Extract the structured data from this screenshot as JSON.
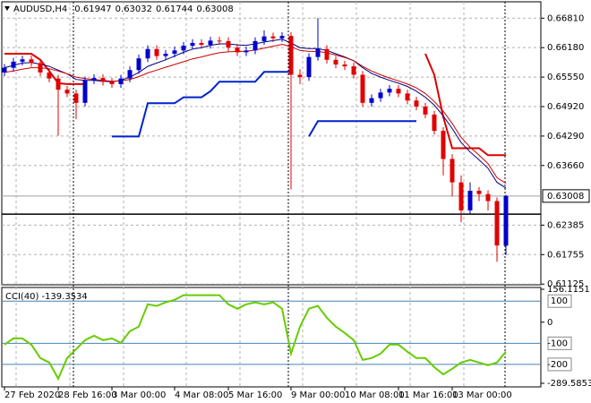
{
  "chart_data": [
    {
      "type": "candlestick",
      "title": "AUDUSD,H4",
      "open": [
        0.6565,
        0.6575,
        0.6588,
        0.6593,
        0.6585,
        0.6565,
        0.6552,
        0.6528,
        0.652,
        0.65,
        0.6548,
        0.6553,
        0.6545,
        0.654,
        0.6552,
        0.657,
        0.6595,
        0.6615,
        0.66,
        0.6605,
        0.6612,
        0.6622,
        0.6628,
        0.6624,
        0.6633,
        0.6632,
        0.6618,
        0.6608,
        0.6612,
        0.6632,
        0.6642,
        0.6638,
        0.6643,
        0.656,
        0.6555,
        0.6598,
        0.6615,
        0.6592,
        0.6582,
        0.6578,
        0.656,
        0.65,
        0.651,
        0.6522,
        0.653,
        0.652,
        0.6505,
        0.6492,
        0.6475,
        0.644,
        0.638,
        0.633,
        0.627,
        0.6312,
        0.6305,
        0.629,
        0.61947
      ],
      "high": [
        0.6583,
        0.6596,
        0.6601,
        0.6601,
        0.6593,
        0.6573,
        0.656,
        0.6536,
        0.6528,
        0.6556,
        0.6561,
        0.6561,
        0.6553,
        0.656,
        0.6578,
        0.6603,
        0.6623,
        0.6623,
        0.6613,
        0.662,
        0.663,
        0.6636,
        0.6636,
        0.6641,
        0.6641,
        0.664,
        0.6626,
        0.662,
        0.664,
        0.6655,
        0.665,
        0.6651,
        0.6651,
        0.6572,
        0.6606,
        0.6681,
        0.6623,
        0.66,
        0.659,
        0.6586,
        0.6568,
        0.6518,
        0.653,
        0.6538,
        0.6538,
        0.6528,
        0.6513,
        0.65,
        0.6483,
        0.6448,
        0.639,
        0.6345,
        0.633,
        0.632,
        0.6313,
        0.6298,
        0.63032
      ],
      "low": [
        0.6557,
        0.6567,
        0.658,
        0.6577,
        0.6557,
        0.6544,
        0.643,
        0.6512,
        0.6465,
        0.6492,
        0.654,
        0.6537,
        0.6532,
        0.6532,
        0.6544,
        0.6562,
        0.6587,
        0.6592,
        0.6592,
        0.6597,
        0.6604,
        0.6614,
        0.6616,
        0.6616,
        0.6624,
        0.661,
        0.66,
        0.66,
        0.6604,
        0.6624,
        0.663,
        0.663,
        0.6315,
        0.654,
        0.6547,
        0.659,
        0.6584,
        0.6574,
        0.657,
        0.6552,
        0.6492,
        0.6492,
        0.6502,
        0.6514,
        0.6512,
        0.6497,
        0.6484,
        0.6467,
        0.6432,
        0.6345,
        0.63,
        0.6245,
        0.6262,
        0.629,
        0.627,
        0.616,
        0.61744
      ],
      "close": [
        0.6575,
        0.6588,
        0.6593,
        0.6585,
        0.6565,
        0.6552,
        0.6528,
        0.652,
        0.65,
        0.6548,
        0.6553,
        0.6545,
        0.654,
        0.6552,
        0.657,
        0.6595,
        0.6615,
        0.66,
        0.6605,
        0.6612,
        0.6622,
        0.6628,
        0.6624,
        0.6633,
        0.6632,
        0.6618,
        0.6608,
        0.6612,
        0.6632,
        0.6642,
        0.6638,
        0.6643,
        0.656,
        0.6555,
        0.6598,
        0.6615,
        0.6592,
        0.6582,
        0.6578,
        0.656,
        0.65,
        0.651,
        0.6522,
        0.653,
        0.652,
        0.6505,
        0.6492,
        0.6475,
        0.644,
        0.638,
        0.633,
        0.627,
        0.6312,
        0.6305,
        0.629,
        0.6195,
        0.63008
      ],
      "up_color": "#0000cd",
      "down_color": "#e00000",
      "lines": [
        {
          "color": "#000080",
          "values": [
            0.6575,
            0.658,
            0.6585,
            0.6586,
            0.6583,
            0.6578,
            0.657,
            0.6562,
            0.655,
            0.6548,
            0.6548,
            0.6546,
            0.6545,
            0.6548,
            0.6555,
            0.6565,
            0.6578,
            0.6585,
            0.6592,
            0.66,
            0.6608,
            0.6615,
            0.6618,
            0.6623,
            0.6626,
            0.6626,
            0.6624,
            0.6623,
            0.6626,
            0.663,
            0.6633,
            0.6636,
            0.6628,
            0.6618,
            0.6616,
            0.6616,
            0.6612,
            0.6605,
            0.6598,
            0.659,
            0.6575,
            0.6563,
            0.6555,
            0.6548,
            0.6542,
            0.6535,
            0.6525,
            0.6512,
            0.6495,
            0.6472,
            0.6445,
            0.6415,
            0.6395,
            0.6378,
            0.636,
            0.633,
            0.6318
          ]
        },
        {
          "color": "#cc0000",
          "values": [
            0.6565,
            0.6568,
            0.6572,
            0.6575,
            0.6575,
            0.6573,
            0.6568,
            0.6562,
            0.6555,
            0.6552,
            0.655,
            0.6548,
            0.6546,
            0.6547,
            0.655,
            0.6556,
            0.6564,
            0.657,
            0.6576,
            0.6582,
            0.6588,
            0.6594,
            0.6598,
            0.6603,
            0.6607,
            0.6609,
            0.661,
            0.661,
            0.6613,
            0.6617,
            0.6621,
            0.6625,
            0.662,
            0.6612,
            0.661,
            0.661,
            0.6607,
            0.6602,
            0.6597,
            0.659,
            0.6578,
            0.6568,
            0.656,
            0.6553,
            0.6547,
            0.654,
            0.6532,
            0.652,
            0.6503,
            0.6482,
            0.6456,
            0.6426,
            0.6405,
            0.6388,
            0.637,
            0.634,
            0.6328
          ]
        }
      ],
      "stops": [
        {
          "color": "#dd0000",
          "values": [
            0.6605,
            0.6605,
            0.6605,
            0.6605,
            0.6592,
            0.6568,
            0.6542,
            0.654,
            0.654,
            0.654,
            null,
            null,
            null,
            null,
            null,
            null,
            null,
            null,
            null,
            null,
            null,
            null,
            null,
            null,
            null,
            null,
            null,
            null,
            null,
            null,
            null,
            null,
            null,
            null,
            null,
            null,
            null,
            null,
            null,
            null,
            null,
            null,
            null,
            null,
            null,
            null,
            null,
            0.6605,
            0.656,
            0.647,
            0.6403,
            0.6403,
            0.6403,
            0.6403,
            0.6388,
            0.6388,
            0.6388
          ]
        },
        {
          "color": "#0022cc",
          "values": [
            null,
            null,
            null,
            null,
            null,
            null,
            null,
            null,
            null,
            null,
            null,
            null,
            0.6428,
            0.6428,
            0.6428,
            0.6428,
            0.6499,
            0.6499,
            0.6499,
            0.6499,
            0.6512,
            0.6512,
            0.6512,
            0.6525,
            0.6545,
            0.6545,
            0.6545,
            0.6545,
            0.6545,
            0.6566,
            0.6566,
            0.6566,
            0.6566,
            null,
            0.6428,
            0.6461,
            0.6461,
            0.6461,
            0.6461,
            0.6461,
            0.6461,
            0.6461,
            0.6461,
            0.6461,
            0.6461,
            0.6461,
            0.6461,
            null,
            null,
            null,
            null,
            null,
            null,
            null,
            null,
            null,
            null
          ]
        }
      ],
      "hline": 0.6262,
      "hline_color": "#000000",
      "ylim": [
        0.6111,
        0.6716
      ],
      "yticks": [
        {
          "value": 0.6681,
          "label": "0.66810"
        },
        {
          "value": 0.6618,
          "label": "0.66180"
        },
        {
          "value": 0.6555,
          "label": "0.65550"
        },
        {
          "value": 0.6492,
          "label": "0.64920"
        },
        {
          "value": 0.6429,
          "label": "0.64290"
        },
        {
          "value": 0.6366,
          "label": "0.63660"
        },
        0.62385,
        0.61755,
        0.61125
      ],
      "xticks": [
        {
          "value": 0,
          "label": "27 Feb 2020"
        },
        {
          "value": 6,
          "label": "28 Feb 16:00"
        },
        {
          "value": 12,
          "label": "3 Mar 00:00"
        },
        {
          "value": 19,
          "label": "4 Mar 08:00"
        },
        {
          "value": 25,
          "label": "5 Mar 16:00"
        },
        {
          "value": 32,
          "label": "9 Mar 00:00"
        },
        {
          "value": 38,
          "label": "10 Mar 08:00"
        },
        {
          "value": 44,
          "label": "11 Mar 16:00"
        },
        {
          "value": 50,
          "label": "13 Mar 00:00"
        }
      ],
      "grid": true
    },
    {
      "type": "line",
      "title": "CCI(40)",
      "color": "#66cc00",
      "values": [
        -106,
        -77,
        -77,
        -106,
        -170,
        -191,
        -268,
        -170,
        -128,
        -85,
        -64,
        -85,
        -77,
        -98,
        -43,
        -21,
        85,
        77,
        94,
        106,
        128,
        128,
        128,
        128,
        128,
        85,
        64,
        85,
        94,
        85,
        94,
        64,
        -149,
        -21,
        64,
        77,
        21,
        -21,
        -51,
        -85,
        -179,
        -170,
        -149,
        -106,
        -106,
        -140,
        -170,
        -170,
        -213,
        -247,
        -221,
        -191,
        -179,
        -191,
        -204,
        -191,
        -139.3534
      ],
      "ylim": [
        -289.5853,
        156.1151
      ],
      "yticks": [
        156.1151,
        0,
        -289.5853
      ],
      "levels": [
        100,
        -100,
        -200
      ],
      "level_color": "#4682b4"
    }
  ]
}
